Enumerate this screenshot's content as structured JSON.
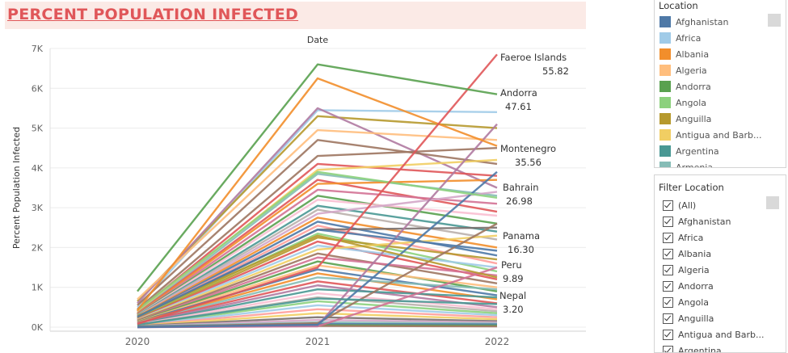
{
  "title": "PERCENT POPULATION INFECTED",
  "chart_data": {
    "type": "line",
    "column_header": "Date",
    "ylabel": "Percent Population Infected",
    "x": [
      "2020",
      "2021",
      "2022"
    ],
    "y_ticks": [
      "0K",
      "1K",
      "2K",
      "3K",
      "4K",
      "5K",
      "6K",
      "7K"
    ],
    "ylim": [
      0,
      7000
    ],
    "grid": true,
    "series": [
      {
        "name": "Andorra",
        "color": "#59a14f",
        "values": [
          900,
          6600,
          5850
        ]
      },
      {
        "name": "Faeroe Islands",
        "color": "#e05759",
        "values": [
          80,
          1500,
          6850
        ]
      },
      {
        "name": "Montenegro",
        "color": "#f28e2b",
        "values": [
          420,
          6250,
          4550
        ]
      },
      {
        "name": "Bahrain",
        "color": "#8cd17d",
        "values": [
          430,
          3900,
          3250
        ]
      },
      {
        "name": "Panama",
        "color": "#4e79a7",
        "values": [
          260,
          2450,
          1920
        ]
      },
      {
        "name": "Peru",
        "color": "#b6992d",
        "values": [
          280,
          2300,
          1250
        ]
      },
      {
        "name": "Nepal",
        "color": "#499894",
        "values": [
          60,
          720,
          580
        ]
      },
      {
        "values": [
          500,
          5450,
          5400
        ],
        "color": "#a0cbe8"
      },
      {
        "values": [
          650,
          5300,
          5000
        ],
        "color": "#b6992d"
      },
      {
        "values": [
          600,
          5500,
          3500
        ],
        "color": "#b07aa1"
      },
      {
        "values": [
          700,
          4950,
          4700
        ],
        "color": "#ffbe7d"
      },
      {
        "values": [
          550,
          4700,
          4100
        ],
        "color": "#9d7660"
      },
      {
        "values": [
          450,
          4300,
          4500
        ],
        "color": "#9d7660"
      },
      {
        "values": [
          400,
          4100,
          3800
        ],
        "color": "#e05759"
      },
      {
        "values": [
          380,
          3950,
          4200
        ],
        "color": "#f1ce63"
      },
      {
        "values": [
          350,
          3850,
          3300
        ],
        "color": "#86bcb6"
      },
      {
        "values": [
          340,
          3700,
          2900
        ],
        "color": "#e05759"
      },
      {
        "values": [
          330,
          3600,
          3700
        ],
        "color": "#f28e2b"
      },
      {
        "values": [
          320,
          3450,
          3100
        ],
        "color": "#d37295"
      },
      {
        "values": [
          310,
          3300,
          2600
        ],
        "color": "#59a14f"
      },
      {
        "values": [
          300,
          3200,
          2800
        ],
        "color": "#fabfd2"
      },
      {
        "values": [
          290,
          3050,
          2400
        ],
        "color": "#499894"
      },
      {
        "values": [
          280,
          2950,
          2200
        ],
        "color": "#bab0ac"
      },
      {
        "values": [
          270,
          2850,
          3400
        ],
        "color": "#d4a6c8"
      },
      {
        "values": [
          260,
          2750,
          2000
        ],
        "color": "#f28e2b"
      },
      {
        "values": [
          250,
          2650,
          1800
        ],
        "color": "#4e79a7"
      },
      {
        "values": [
          240,
          2550,
          1600
        ],
        "color": "#ff9d9a"
      },
      {
        "values": [
          230,
          2450,
          2500
        ],
        "color": "#79706e"
      },
      {
        "values": [
          220,
          2350,
          1400
        ],
        "color": "#8cd17d"
      },
      {
        "values": [
          210,
          2250,
          1700
        ],
        "color": "#b6992d"
      },
      {
        "values": [
          200,
          2150,
          1200
        ],
        "color": "#e15759"
      },
      {
        "values": [
          190,
          2050,
          1500
        ],
        "color": "#a0cbe8"
      },
      {
        "values": [
          180,
          1950,
          2300
        ],
        "color": "#f1ce63"
      },
      {
        "values": [
          170,
          1850,
          1100
        ],
        "color": "#9d7660"
      },
      {
        "values": [
          160,
          1750,
          1300
        ],
        "color": "#d37295"
      },
      {
        "values": [
          150,
          1650,
          900
        ],
        "color": "#59a14f"
      },
      {
        "values": [
          140,
          1550,
          1000
        ],
        "color": "#ffbe7d"
      },
      {
        "values": [
          130,
          1450,
          800
        ],
        "color": "#4e79a7"
      },
      {
        "values": [
          120,
          1350,
          700
        ],
        "color": "#f28e2b"
      },
      {
        "values": [
          110,
          1250,
          950
        ],
        "color": "#86bcb6"
      },
      {
        "values": [
          100,
          1150,
          600
        ],
        "color": "#e05759"
      },
      {
        "values": [
          90,
          1050,
          500
        ],
        "color": "#b07aa1"
      },
      {
        "values": [
          80,
          950,
          750
        ],
        "color": "#499894"
      },
      {
        "values": [
          70,
          850,
          450
        ],
        "color": "#fabfd2"
      },
      {
        "values": [
          60,
          750,
          400
        ],
        "color": "#bab0ac"
      },
      {
        "values": [
          50,
          650,
          350
        ],
        "color": "#8cd17d"
      },
      {
        "values": [
          45,
          550,
          300
        ],
        "color": "#a0cbe8"
      },
      {
        "values": [
          40,
          450,
          250
        ],
        "color": "#ff9d9a"
      },
      {
        "values": [
          35,
          350,
          200
        ],
        "color": "#f1ce63"
      },
      {
        "values": [
          30,
          250,
          150
        ],
        "color": "#79706e"
      },
      {
        "values": [
          25,
          180,
          120
        ],
        "color": "#d4a6c8"
      },
      {
        "values": [
          20,
          120,
          90
        ],
        "color": "#86bcb6"
      },
      {
        "values": [
          15,
          80,
          70
        ],
        "color": "#4e79a7"
      },
      {
        "values": [
          10,
          50,
          40
        ],
        "color": "#59a14f"
      },
      {
        "values": [
          5,
          30,
          20
        ],
        "color": "#9d7660"
      },
      {
        "values": [
          0,
          20,
          1500
        ],
        "color": "#d37295"
      },
      {
        "values": [
          0,
          100,
          2600
        ],
        "color": "#9d7660"
      },
      {
        "values": [
          0,
          40,
          5100
        ],
        "color": "#b07aa1"
      },
      {
        "values": [
          0,
          60,
          3900
        ],
        "color": "#4e79a7"
      }
    ],
    "annotations": [
      {
        "name": "Faeroe Islands",
        "value": "55.82"
      },
      {
        "name": "Andorra",
        "value": "47.61"
      },
      {
        "name": "Montenegro",
        "value": "35.56"
      },
      {
        "name": "Bahrain",
        "value": "26.98"
      },
      {
        "name": "Panama",
        "value": "16.30"
      },
      {
        "name": "Peru",
        "value": "9.89"
      },
      {
        "name": "Nepal",
        "value": "3.20"
      }
    ]
  },
  "legend": {
    "title": "Location",
    "items": [
      {
        "label": "Afghanistan",
        "color": "#4e79a7"
      },
      {
        "label": "Africa",
        "color": "#a0cbe8"
      },
      {
        "label": "Albania",
        "color": "#f28e2b"
      },
      {
        "label": "Algeria",
        "color": "#ffbe7d"
      },
      {
        "label": "Andorra",
        "color": "#59a14f"
      },
      {
        "label": "Angola",
        "color": "#8cd17d"
      },
      {
        "label": "Anguilla",
        "color": "#b6992d"
      },
      {
        "label": "Antigua and Barb...",
        "color": "#f1ce63"
      },
      {
        "label": "Argentina",
        "color": "#499894"
      },
      {
        "label": "Armenia",
        "color": "#86bcb6"
      }
    ]
  },
  "filter": {
    "title": "Filter Location",
    "items": [
      "(All)",
      "Afghanistan",
      "Africa",
      "Albania",
      "Algeria",
      "Andorra",
      "Angola",
      "Anguilla",
      "Antigua and Barb...",
      "Argentina"
    ]
  }
}
